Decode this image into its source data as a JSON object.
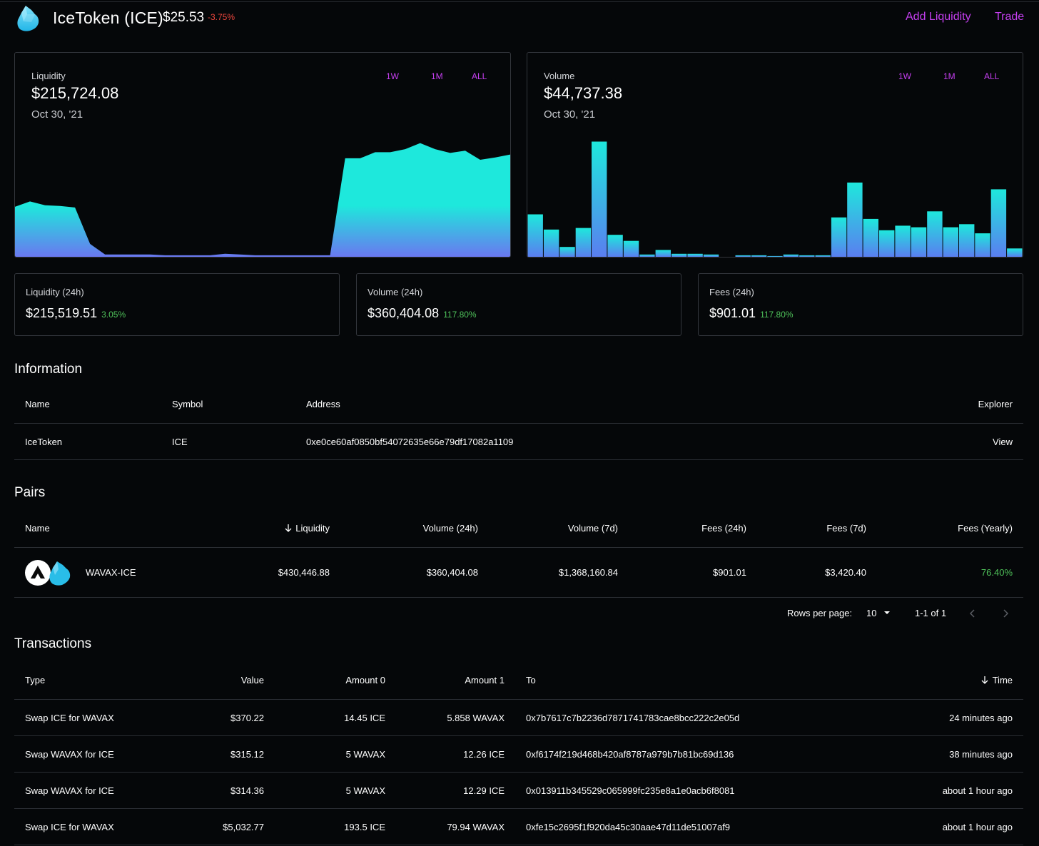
{
  "header": {
    "title": "IceToken (ICE)",
    "price": "$25.53",
    "change": "-3.75%",
    "add_liquidity": "Add Liquidity",
    "trade": "Trade"
  },
  "liquidity_panel": {
    "label": "Liquidity",
    "value": "$215,724.08",
    "date": "Oct 30, '21",
    "ranges": [
      "1W",
      "1M",
      "ALL"
    ]
  },
  "volume_panel": {
    "label": "Volume",
    "value": "$44,737.38",
    "date": "Oct 30, '21",
    "ranges": [
      "1W",
      "1M",
      "ALL"
    ]
  },
  "stats": [
    {
      "label": "Liquidity (24h)",
      "value": "$215,519.51",
      "change": "3.05%"
    },
    {
      "label": "Volume (24h)",
      "value": "$360,404.08",
      "change": "117.80%"
    },
    {
      "label": "Fees (24h)",
      "value": "$901.01",
      "change": "117.80%"
    }
  ],
  "information": {
    "title": "Information",
    "headers": {
      "name": "Name",
      "symbol": "Symbol",
      "address": "Address",
      "explorer": "Explorer"
    },
    "row": {
      "name": "IceToken",
      "symbol": "ICE",
      "address": "0xe0ce60af0850bf54072635e66e79df17082a1109",
      "explorer": "View"
    }
  },
  "pairs": {
    "title": "Pairs",
    "headers": {
      "name": "Name",
      "liquidity": "Liquidity",
      "volume_24h": "Volume (24h)",
      "volume_7d": "Volume (7d)",
      "fees_24h": "Fees (24h)",
      "fees_7d": "Fees (7d)",
      "fees_yearly": "Fees (Yearly)"
    },
    "row": {
      "name": "WAVAX-ICE",
      "liquidity": "$430,446.88",
      "volume_24h": "$360,404.08",
      "volume_7d": "$1,368,160.84",
      "fees_24h": "$901.01",
      "fees_7d": "$3,420.40",
      "fees_yearly": "76.40%"
    },
    "pagination": {
      "rows_label": "Rows per page:",
      "rows_value": "10",
      "range": "1-1 of 1"
    }
  },
  "transactions": {
    "title": "Transactions",
    "headers": {
      "type": "Type",
      "value": "Value",
      "amount0": "Amount 0",
      "amount1": "Amount 1",
      "to": "To",
      "time": "Time"
    },
    "rows": [
      {
        "type": "Swap ICE for WAVAX",
        "value": "$370.22",
        "amount0": "14.45 ICE",
        "amount1": "5.858 WAVAX",
        "to": "0x7b7617c7b2236d7871741783cae8bcc222c2e05d",
        "time": "24 minutes ago"
      },
      {
        "type": "Swap WAVAX for ICE",
        "value": "$315.12",
        "amount0": "5 WAVAX",
        "amount1": "12.26 ICE",
        "to": "0xf6174f219d468b420af8787a979b7b81bc69d136",
        "time": "38 minutes ago"
      },
      {
        "type": "Swap WAVAX for ICE",
        "value": "$314.36",
        "amount0": "5 WAVAX",
        "amount1": "12.29 ICE",
        "to": "0x013911b345529c065999fc235e8a1e0acb6f8081",
        "time": "about 1 hour ago"
      },
      {
        "type": "Swap ICE for WAVAX",
        "value": "$5,032.77",
        "amount0": "193.5 ICE",
        "amount1": "79.94 WAVAX",
        "to": "0xfe15c2695f1f920da45c30aae47d11de51007af9",
        "time": "about 1 hour ago"
      }
    ]
  },
  "colors": {
    "accent": "#c53ff0",
    "positive": "#4fc25a",
    "negative": "#f0473e",
    "chart_top": "#1ee8dc",
    "chart_bottom": "#6a78f0"
  },
  "chart_data": [
    {
      "type": "area",
      "values": [
        66,
        73,
        68,
        67,
        65,
        17,
        3,
        3,
        3,
        3,
        2,
        2,
        2,
        2,
        4,
        3,
        2,
        2,
        2,
        2,
        2,
        2,
        130,
        130,
        138,
        138,
        142,
        150,
        142,
        137,
        140,
        128,
        131,
        135
      ]
    },
    {
      "type": "bar",
      "values": [
        56,
        36,
        13,
        38,
        152,
        29,
        21,
        3,
        9,
        4,
        4,
        3,
        0,
        2,
        2,
        1,
        3,
        2,
        2,
        52,
        98,
        50,
        35,
        41,
        39,
        60,
        39,
        43,
        31,
        89,
        11
      ]
    }
  ]
}
